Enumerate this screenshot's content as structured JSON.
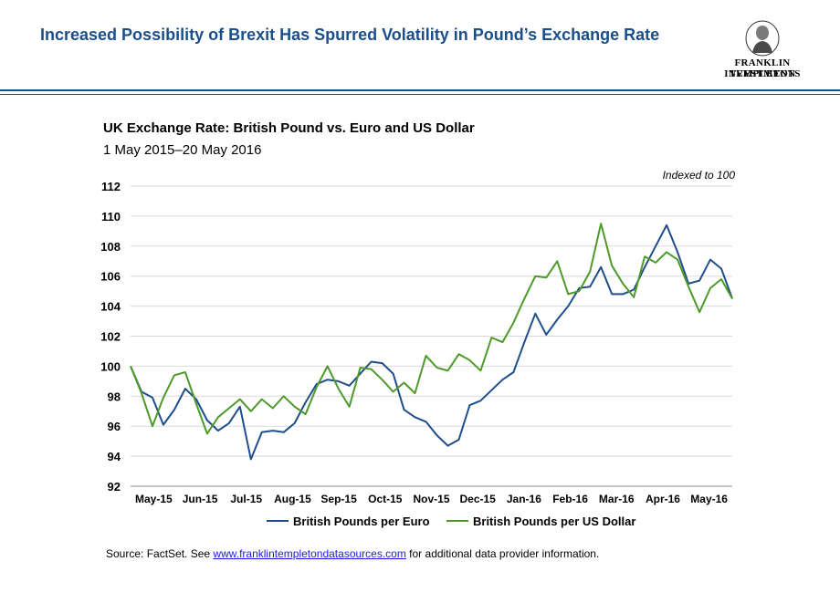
{
  "header": {
    "title": "Increased Possibility of Brexit Has Spurred Volatility in Pound’s Exchange Rate"
  },
  "logo": {
    "line1": "FRANKLIN TEMPLETON",
    "line2": "INVESTMENTS"
  },
  "colors": {
    "brand_blue": "#1a4f8b",
    "euro_series": "#1f4e8c",
    "usd_series": "#4d9a2a",
    "grid": "#d9d9d9"
  },
  "chart_data": {
    "type": "line",
    "title": "UK Exchange  Rate: British Pound vs.  Euro and US Dollar",
    "subtitle": "1 May 2015–20  May 2016",
    "annotation": "Indexed to 100",
    "ylim": [
      92,
      112
    ],
    "yticks": [
      92,
      94,
      96,
      98,
      100,
      102,
      104,
      106,
      108,
      110,
      112
    ],
    "grid": "horizontal",
    "legend_position": "bottom",
    "x_start": "2015-05-01",
    "x_end": "2016-05-20",
    "categories": [
      "May-15",
      "Jun-15",
      "Jul-15",
      "Aug-15",
      "Sep-15",
      "Oct-15",
      "Nov-15",
      "Dec-15",
      "Jan-16",
      "Feb-16",
      "Mar-16",
      "Apr-16",
      "May-16"
    ],
    "series": [
      {
        "name": "British Pounds per Euro",
        "points": [
          [
            "2015-05-01",
            100.0
          ],
          [
            "2015-05-08",
            98.3
          ],
          [
            "2015-05-15",
            97.9
          ],
          [
            "2015-05-22",
            96.1
          ],
          [
            "2015-05-29",
            97.1
          ],
          [
            "2015-06-05",
            98.5
          ],
          [
            "2015-06-12",
            97.8
          ],
          [
            "2015-06-19",
            96.4
          ],
          [
            "2015-06-26",
            95.7
          ],
          [
            "2015-07-03",
            96.2
          ],
          [
            "2015-07-10",
            97.3
          ],
          [
            "2015-07-17",
            93.8
          ],
          [
            "2015-07-24",
            95.6
          ],
          [
            "2015-07-31",
            95.7
          ],
          [
            "2015-08-07",
            95.6
          ],
          [
            "2015-08-14",
            96.2
          ],
          [
            "2015-08-21",
            97.6
          ],
          [
            "2015-08-28",
            98.8
          ],
          [
            "2015-09-04",
            99.1
          ],
          [
            "2015-09-11",
            99.0
          ],
          [
            "2015-09-18",
            98.7
          ],
          [
            "2015-09-25",
            99.5
          ],
          [
            "2015-10-02",
            100.3
          ],
          [
            "2015-10-09",
            100.2
          ],
          [
            "2015-10-16",
            99.5
          ],
          [
            "2015-10-23",
            97.1
          ],
          [
            "2015-10-30",
            96.6
          ],
          [
            "2015-11-06",
            96.3
          ],
          [
            "2015-11-13",
            95.4
          ],
          [
            "2015-11-20",
            94.7
          ],
          [
            "2015-11-27",
            95.1
          ],
          [
            "2015-12-04",
            97.4
          ],
          [
            "2015-12-11",
            97.7
          ],
          [
            "2015-12-18",
            98.4
          ],
          [
            "2015-12-25",
            99.1
          ],
          [
            "2016-01-01",
            99.6
          ],
          [
            "2016-01-08",
            101.6
          ],
          [
            "2016-01-15",
            103.5
          ],
          [
            "2016-01-22",
            102.1
          ],
          [
            "2016-01-29",
            103.1
          ],
          [
            "2016-02-05",
            104.0
          ],
          [
            "2016-02-12",
            105.2
          ],
          [
            "2016-02-19",
            105.3
          ],
          [
            "2016-02-26",
            106.6
          ],
          [
            "2016-03-04",
            104.8
          ],
          [
            "2016-03-11",
            104.8
          ],
          [
            "2016-03-18",
            105.1
          ],
          [
            "2016-03-25",
            106.6
          ],
          [
            "2016-04-01",
            108.0
          ],
          [
            "2016-04-08",
            109.4
          ],
          [
            "2016-04-15",
            107.6
          ],
          [
            "2016-04-22",
            105.5
          ],
          [
            "2016-04-29",
            105.7
          ],
          [
            "2016-05-06",
            107.1
          ],
          [
            "2016-05-13",
            106.5
          ],
          [
            "2016-05-20",
            104.5
          ]
        ]
      },
      {
        "name": "British Pounds per US Dollar",
        "points": [
          [
            "2015-05-01",
            100.0
          ],
          [
            "2015-05-08",
            98.2
          ],
          [
            "2015-05-15",
            96.0
          ],
          [
            "2015-05-22",
            97.9
          ],
          [
            "2015-05-29",
            99.4
          ],
          [
            "2015-06-05",
            99.6
          ],
          [
            "2015-06-12",
            97.5
          ],
          [
            "2015-06-19",
            95.5
          ],
          [
            "2015-06-26",
            96.6
          ],
          [
            "2015-07-03",
            97.2
          ],
          [
            "2015-07-10",
            97.8
          ],
          [
            "2015-07-17",
            97.0
          ],
          [
            "2015-07-24",
            97.8
          ],
          [
            "2015-07-31",
            97.2
          ],
          [
            "2015-08-07",
            98.0
          ],
          [
            "2015-08-14",
            97.3
          ],
          [
            "2015-08-21",
            96.8
          ],
          [
            "2015-08-28",
            98.6
          ],
          [
            "2015-09-04",
            100.0
          ],
          [
            "2015-09-11",
            98.5
          ],
          [
            "2015-09-18",
            97.3
          ],
          [
            "2015-09-25",
            99.9
          ],
          [
            "2015-10-02",
            99.8
          ],
          [
            "2015-10-09",
            99.1
          ],
          [
            "2015-10-16",
            98.3
          ],
          [
            "2015-10-23",
            98.9
          ],
          [
            "2015-10-30",
            98.2
          ],
          [
            "2015-11-06",
            100.7
          ],
          [
            "2015-11-13",
            99.9
          ],
          [
            "2015-11-20",
            99.7
          ],
          [
            "2015-11-27",
            100.8
          ],
          [
            "2015-12-04",
            100.4
          ],
          [
            "2015-12-11",
            99.7
          ],
          [
            "2015-12-18",
            101.9
          ],
          [
            "2015-12-25",
            101.6
          ],
          [
            "2016-01-01",
            102.9
          ],
          [
            "2016-01-08",
            104.5
          ],
          [
            "2016-01-15",
            106.0
          ],
          [
            "2016-01-22",
            105.9
          ],
          [
            "2016-01-29",
            107.0
          ],
          [
            "2016-02-05",
            104.8
          ],
          [
            "2016-02-12",
            105.0
          ],
          [
            "2016-02-19",
            106.3
          ],
          [
            "2016-02-26",
            109.5
          ],
          [
            "2016-03-04",
            106.7
          ],
          [
            "2016-03-11",
            105.5
          ],
          [
            "2016-03-18",
            104.6
          ],
          [
            "2016-03-25",
            107.3
          ],
          [
            "2016-04-01",
            106.9
          ],
          [
            "2016-04-08",
            107.6
          ],
          [
            "2016-04-15",
            107.1
          ],
          [
            "2016-04-22",
            105.3
          ],
          [
            "2016-04-29",
            103.6
          ],
          [
            "2016-05-06",
            105.2
          ],
          [
            "2016-05-13",
            105.8
          ],
          [
            "2016-05-20",
            104.5
          ]
        ]
      }
    ]
  },
  "source": {
    "prefix": "Source: FactSet. See ",
    "link": "www.franklintempletondatasources.com",
    "suffix": " for additional data provider information."
  }
}
